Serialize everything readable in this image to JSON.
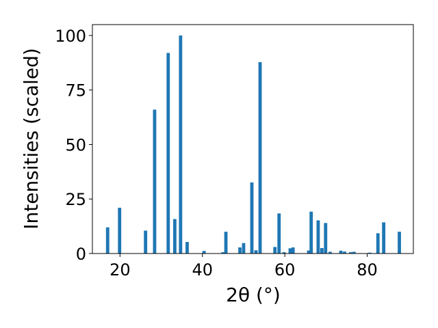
{
  "chart_data": {
    "type": "bar",
    "xlabel": "2θ (°)",
    "ylabel": "Intensities (scaled)",
    "xlim": [
      13.3,
      91.2
    ],
    "ylim": [
      0,
      105
    ],
    "xticks": [
      20,
      40,
      60,
      80
    ],
    "yticks": [
      0,
      25,
      50,
      75,
      100
    ],
    "grid": false,
    "bar_width": 0.8,
    "color": "#1f77b4",
    "x": [
      17.0,
      19.9,
      26.2,
      28.4,
      31.7,
      33.3,
      34.7,
      36.3,
      40.4,
      45.0,
      45.7,
      49.1,
      50.0,
      52.0,
      53.0,
      54.0,
      57.6,
      58.6,
      59.8,
      61.3,
      62.0,
      65.8,
      66.4,
      68.1,
      69.0,
      69.9,
      71.0,
      73.6,
      74.5,
      76.0,
      76.8,
      80.6,
      82.6,
      84.0,
      87.8
    ],
    "values": [
      12.0,
      21.0,
      10.5,
      66.0,
      92.0,
      15.8,
      100.0,
      5.3,
      1.2,
      0.6,
      10.0,
      2.8,
      4.8,
      32.6,
      1.5,
      87.8,
      3.0,
      18.4,
      0.6,
      2.4,
      2.8,
      1.4,
      19.2,
      15.2,
      2.5,
      14.0,
      0.8,
      1.3,
      0.9,
      0.6,
      0.8,
      0.4,
      9.3,
      14.3,
      10.0
    ]
  }
}
